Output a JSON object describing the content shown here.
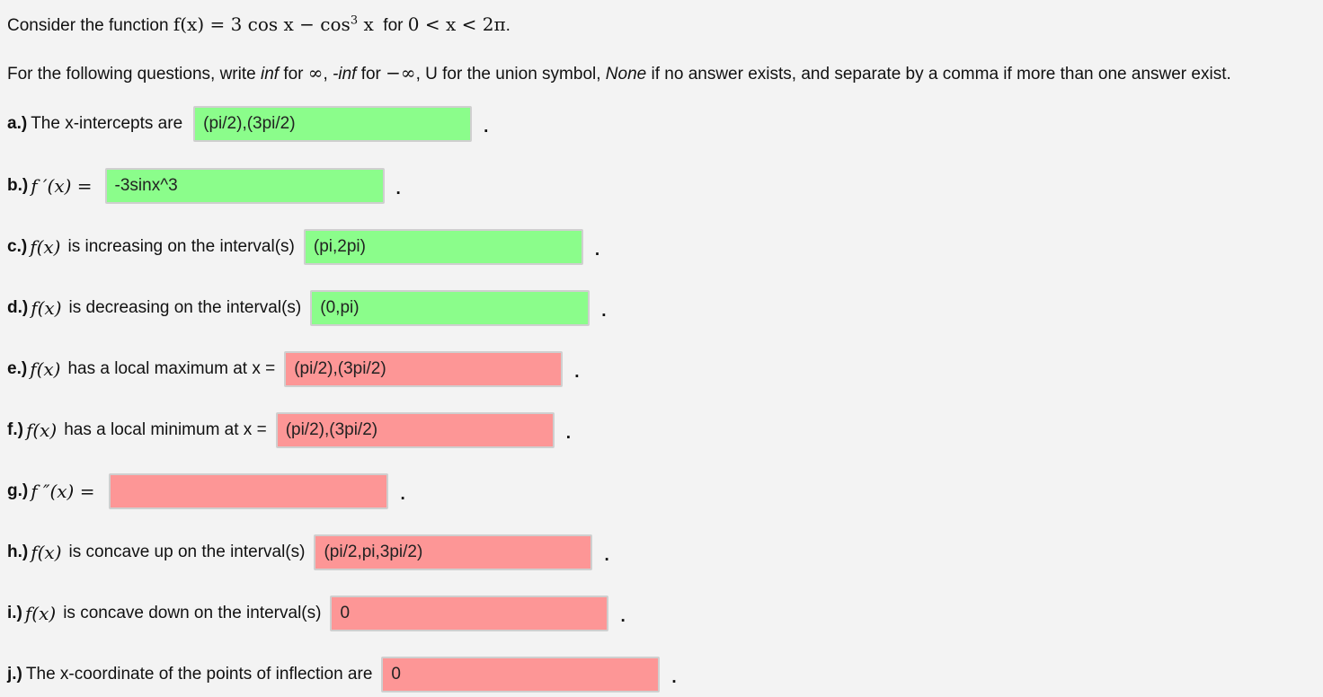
{
  "intro": {
    "prefix": "Consider the function",
    "function_math": "f(x) = 3 cos x − cos",
    "cube": "3",
    "function_tail": " x",
    "domain_word": "for",
    "domain_math": "0 < x < 2π",
    "period": "."
  },
  "instructions": {
    "part1": "For the following questions, write ",
    "inf": "inf",
    "part2": " for ",
    "inf_symbol": "∞",
    "part3": ", ",
    "neg_inf": "-inf",
    "part4": " for ",
    "neg_inf_symbol": "−∞",
    "part5": ", U for the union symbol, ",
    "none": "None",
    "part6": " if no answer exists, and separate by a comma if more than one answer exist."
  },
  "questions": [
    {
      "label": "a.)",
      "math": "",
      "text": "The x-intercepts are",
      "value": "(pi/2),(3pi/2)",
      "status": "correct"
    },
    {
      "label": "b.)",
      "math": "f ′(x) =",
      "text": "",
      "value": "-3sinx^3",
      "status": "correct"
    },
    {
      "label": "c.)",
      "math": "f(x)",
      "text": "is increasing on the interval(s)",
      "value": "(pi,2pi)",
      "status": "correct"
    },
    {
      "label": "d.)",
      "math": "f(x)",
      "text": "is decreasing on the interval(s)",
      "value": "(0,pi)",
      "status": "correct"
    },
    {
      "label": "e.)",
      "math": "f(x)",
      "text": "has a local maximum at x =",
      "value": "(pi/2),(3pi/2)",
      "status": "incorrect"
    },
    {
      "label": "f.)",
      "math": "f(x)",
      "text": "has a local minimum at x =",
      "value": "(pi/2),(3pi/2)",
      "status": "incorrect"
    },
    {
      "label": "g.)",
      "math": "f ″(x) =",
      "text": "",
      "value": "",
      "status": "incorrect"
    },
    {
      "label": "h.)",
      "math": "f(x)",
      "text": "is concave up on the interval(s)",
      "value": "(pi/2,pi,3pi/2)",
      "status": "incorrect"
    },
    {
      "label": "i.)",
      "math": "f(x)",
      "text": "is concave down on the interval(s)",
      "value": "0",
      "status": "incorrect"
    },
    {
      "label": "j.)",
      "math": "",
      "text": "The x-coordinate of the points of inflection are",
      "value": "0",
      "status": "incorrect"
    }
  ],
  "terminal_dot": ".",
  "colors": {
    "correct": "#8bfd8b",
    "incorrect": "#fd9696",
    "background": "#f3f3f3"
  }
}
